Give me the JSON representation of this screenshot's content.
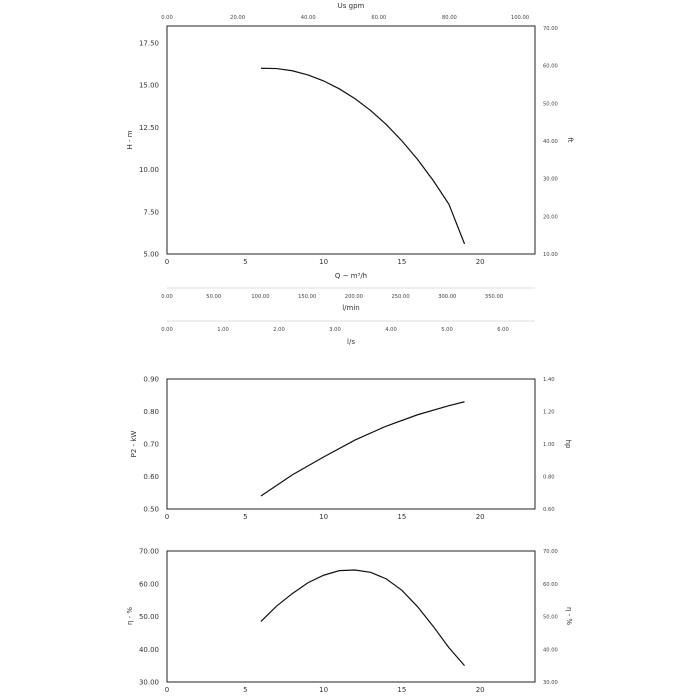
{
  "chart_data": [
    {
      "type": "line",
      "id": "head",
      "x_axis": {
        "label": "Q ~ m³/h",
        "range": [
          0,
          23.5
        ],
        "ticks": [
          "0",
          "5",
          "10",
          "15",
          "20"
        ]
      },
      "y_axis": {
        "label": "H - m",
        "range": [
          5.0,
          18.5
        ],
        "ticks": [
          "5.00",
          "7.50",
          "10.00",
          "12.50",
          "15.00",
          "17.50"
        ]
      },
      "y_axis_right": {
        "label": "ft",
        "ticks": [
          "10.00",
          "20.00",
          "30.00",
          "40.00",
          "50.00",
          "60.00",
          "70.00"
        ]
      },
      "x_axis_top": {
        "label": "Us gpm",
        "ticks": [
          "0.00",
          "20.00",
          "40.00",
          "60.00",
          "80.00",
          "100.00"
        ]
      },
      "series": [
        {
          "x": [
            6,
            7,
            8,
            9,
            10,
            11,
            12,
            13,
            14,
            15,
            16,
            17,
            18,
            19
          ],
          "y": [
            16.0,
            15.98,
            15.85,
            15.6,
            15.25,
            14.78,
            14.2,
            13.5,
            12.67,
            11.7,
            10.6,
            9.35,
            7.95,
            5.6
          ]
        }
      ]
    },
    {
      "type": "line",
      "id": "power",
      "x_axis": {
        "range": [
          0,
          23.5
        ],
        "ticks": [
          "0",
          "5",
          "10",
          "15",
          "20"
        ]
      },
      "y_axis": {
        "label": "P2 - kW",
        "range": [
          0.5,
          0.9
        ],
        "ticks": [
          "0.50",
          "0.60",
          "0.70",
          "0.80",
          "0.90"
        ]
      },
      "y_axis_right": {
        "label": "hp",
        "ticks": [
          "0.60",
          "0.80",
          "1.00",
          "1.20",
          "1.40"
        ]
      },
      "series": [
        {
          "x": [
            6,
            8,
            10,
            12,
            14,
            16,
            18,
            19
          ],
          "y": [
            0.54,
            0.605,
            0.66,
            0.712,
            0.755,
            0.79,
            0.818,
            0.83
          ]
        }
      ]
    },
    {
      "type": "line",
      "id": "efficiency",
      "x_axis": {
        "range": [
          0,
          23.5
        ],
        "ticks": [
          "0",
          "5",
          "10",
          "15",
          "20"
        ]
      },
      "y_axis": {
        "label": "η - %",
        "range": [
          30,
          70
        ],
        "ticks": [
          "30.00",
          "40.00",
          "50.00",
          "60.00",
          "70.00"
        ]
      },
      "y_axis_right": {
        "label": "η - %",
        "ticks": [
          "30.00",
          "40.00",
          "50.00",
          "60.00",
          "70.00"
        ]
      },
      "series": [
        {
          "x": [
            6,
            7,
            8,
            9,
            10,
            11,
            12,
            13,
            14,
            15,
            16,
            17,
            18,
            19
          ],
          "y": [
            48.5,
            53.2,
            57.0,
            60.3,
            62.6,
            64.0,
            64.2,
            63.5,
            61.5,
            58.0,
            53.0,
            47.0,
            40.5,
            35.0
          ]
        }
      ]
    }
  ],
  "secondary_scales": [
    {
      "id": "lmin",
      "label": "l/min",
      "ticks": [
        "0.00",
        "50.00",
        "100.00",
        "150.00",
        "200.00",
        "250.00",
        "300.00",
        "350.00"
      ]
    },
    {
      "id": "ls",
      "label": "l/s",
      "ticks": [
        "0.00",
        "1.00",
        "2.00",
        "3.00",
        "4.00",
        "5.00",
        "6.00"
      ]
    }
  ]
}
